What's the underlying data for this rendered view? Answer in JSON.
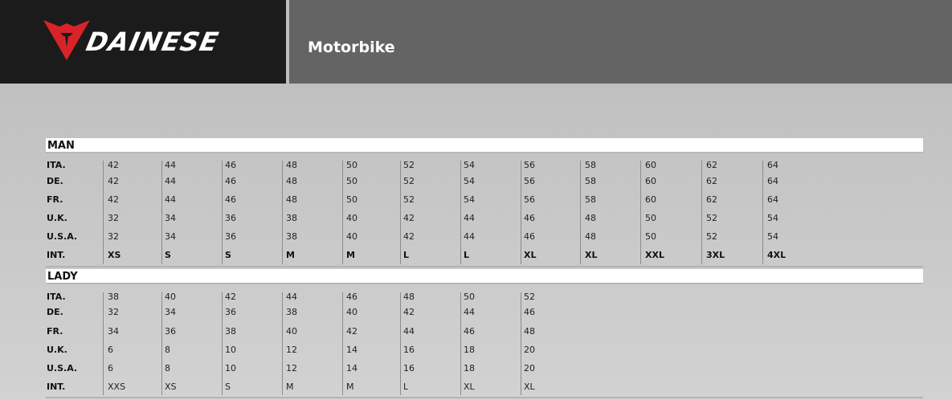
{
  "brand": {
    "name": "DAINESE",
    "logo_color": "#d8232a"
  },
  "header": {
    "section": "Motorbike"
  },
  "tables": [
    {
      "title": "MAN",
      "rows": [
        {
          "label": "ITA.",
          "values": [
            "42",
            "44",
            "46",
            "48",
            "50",
            "52",
            "54",
            "56",
            "58",
            "60",
            "62",
            "64"
          ]
        },
        {
          "label": "DE.",
          "values": [
            "42",
            "44",
            "46",
            "48",
            "50",
            "52",
            "54",
            "56",
            "58",
            "60",
            "62",
            "64"
          ]
        },
        {
          "label": "FR.",
          "values": [
            "42",
            "44",
            "46",
            "48",
            "50",
            "52",
            "54",
            "56",
            "58",
            "60",
            "62",
            "64"
          ]
        },
        {
          "label": "U.K.",
          "values": [
            "32",
            "34",
            "36",
            "38",
            "40",
            "42",
            "44",
            "46",
            "48",
            "50",
            "52",
            "54"
          ]
        },
        {
          "label": "U.S.A.",
          "values": [
            "32",
            "34",
            "36",
            "38",
            "40",
            "42",
            "44",
            "46",
            "48",
            "50",
            "52",
            "54"
          ]
        },
        {
          "label": "INT.",
          "values": [
            "XS",
            "S",
            "S",
            "M",
            "M",
            "L",
            "L",
            "XL",
            "XL",
            "XXL",
            "3XL",
            "4XL"
          ]
        }
      ]
    },
    {
      "title": "LADY",
      "rows": [
        {
          "label": "ITA.",
          "values": [
            "38",
            "40",
            "42",
            "44",
            "46",
            "48",
            "50",
            "52"
          ]
        },
        {
          "label": "DE.",
          "values": [
            "32",
            "34",
            "36",
            "38",
            "40",
            "42",
            "44",
            "46"
          ]
        },
        {
          "label": "FR.",
          "values": [
            "34",
            "36",
            "38",
            "40",
            "42",
            "44",
            "46",
            "48"
          ]
        },
        {
          "label": "U.K.",
          "values": [
            "6",
            "8",
            "10",
            "12",
            "14",
            "16",
            "18",
            "20"
          ]
        },
        {
          "label": "U.S.A.",
          "values": [
            "6",
            "8",
            "10",
            "12",
            "14",
            "16",
            "18",
            "20"
          ]
        },
        {
          "label": "INT.",
          "values": [
            "XXS",
            "XS",
            "S",
            "M",
            "M",
            "L",
            "XL",
            "XL"
          ]
        }
      ]
    }
  ]
}
